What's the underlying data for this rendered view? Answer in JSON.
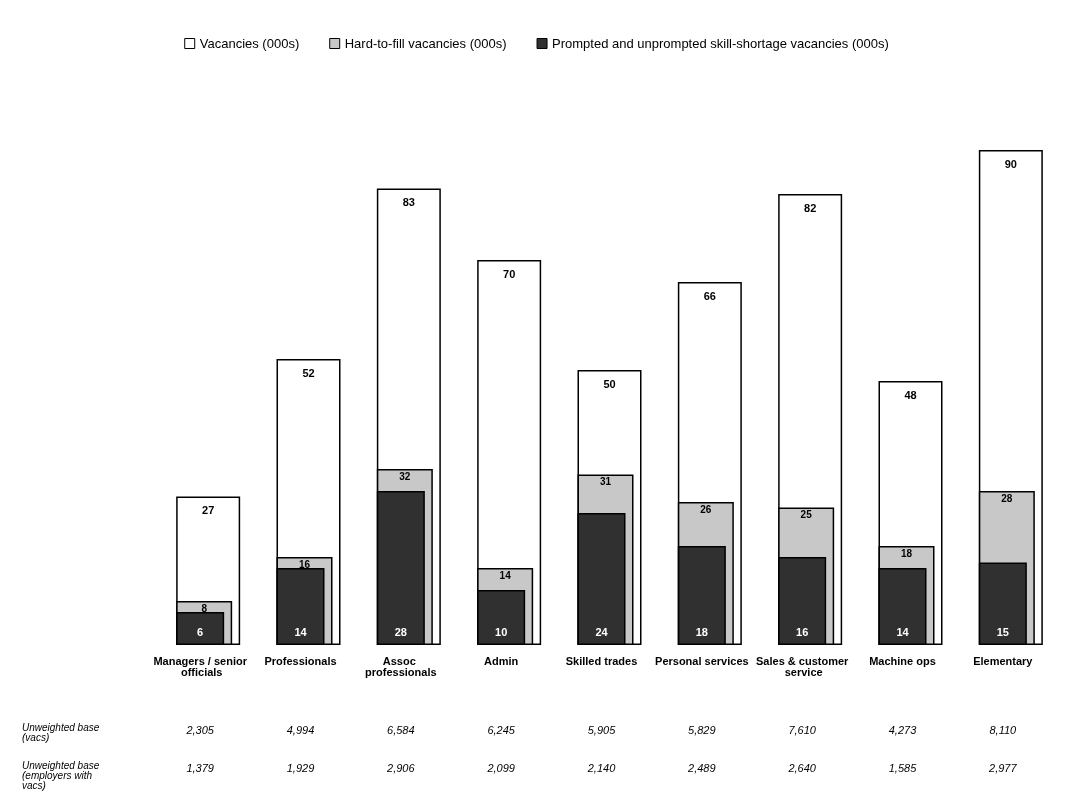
{
  "chart_data": {
    "type": "bar",
    "categories": [
      "Managers / senior officials",
      "Professionals",
      "Assoc professionals",
      "Admin",
      "Skilled trades",
      "Personal services",
      "Sales & customer service",
      "Machine ops",
      "Elementary"
    ],
    "series": [
      {
        "name": "Vacancies (000s)",
        "color": "#ffffff",
        "values": [
          27,
          52,
          83,
          70,
          50,
          66,
          82,
          48,
          90
        ]
      },
      {
        "name": "Hard-to-fill vacancies (000s)",
        "color": "#c8c8c8",
        "values": [
          8,
          16,
          32,
          14,
          31,
          26,
          25,
          18,
          28
        ]
      },
      {
        "name": "Prompted and unprompted skill-shortage vacancies (000s)",
        "color": "#303030",
        "values": [
          6,
          14,
          28,
          10,
          24,
          18,
          16,
          14,
          15
        ]
      }
    ],
    "data_labels": true,
    "legend": "top",
    "grid": false,
    "annotations": [
      "Unweighted base (vacs)",
      "2,305",
      "4,994",
      "6,584",
      "6,245",
      "5,905",
      "5,829",
      "7,610",
      "4,273",
      "8,110",
      "Unweighted base (employers with vacs)",
      "1,379",
      "1,929",
      "2,906",
      "2,099",
      "2,140",
      "2,489",
      "2,640",
      "1,585",
      "2,977"
    ]
  }
}
